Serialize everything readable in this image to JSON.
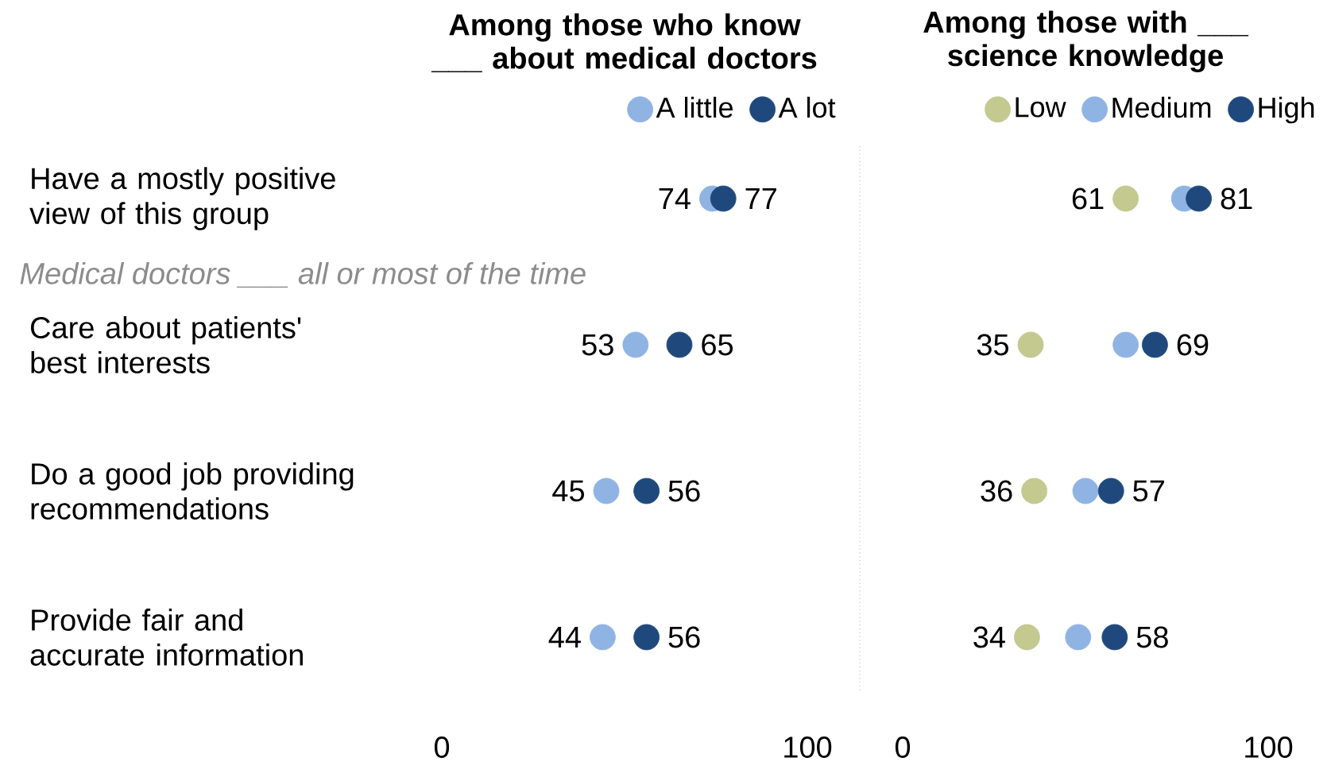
{
  "chart_data": [
    {
      "type": "scatter",
      "orientation": "horizontal",
      "title": "Among those who know ___ about medical doctors",
      "categories": [
        "Have a mostly positive view of this group",
        "Care about patients' best interests",
        "Do a good job providing recommendations",
        "Provide fair and accurate information"
      ],
      "series": [
        {
          "name": "A little",
          "color": "#8fb4e3",
          "values": [
            74,
            53,
            45,
            44
          ]
        },
        {
          "name": "A lot",
          "color": "#1f497d",
          "values": [
            77,
            65,
            56,
            56
          ]
        }
      ],
      "xlim": [
        0,
        100
      ],
      "xticks": [
        0,
        100
      ],
      "data_labels": true,
      "legend": "top",
      "marker": "circle",
      "grid": false,
      "annotations": [
        "Medical doctors ___ all or most of the time"
      ]
    },
    {
      "type": "scatter",
      "orientation": "horizontal",
      "title": "Among those with ___ science knowledge",
      "categories": [
        null,
        null,
        null,
        null
      ],
      "series": [
        {
          "name": "Low",
          "color": "#c3c98f",
          "values": [
            61,
            35,
            36,
            34
          ],
          "value_labels": [
            "61",
            "35",
            "36",
            "34"
          ]
        },
        {
          "name": "Medium",
          "color": "#8fb4e3",
          "values": [
            77,
            61,
            50,
            48
          ],
          "value_labels": [
            null,
            null,
            null,
            null
          ]
        },
        {
          "name": "High",
          "color": "#1f497d",
          "values": [
            81,
            69,
            57,
            58
          ],
          "value_labels": [
            "81",
            "69",
            "57",
            "58"
          ]
        }
      ],
      "xlim": [
        0,
        100
      ],
      "xticks": [
        0,
        100
      ],
      "legend": "top",
      "marker": "circle",
      "grid": false,
      "tick_labels": "x"
    }
  ]
}
